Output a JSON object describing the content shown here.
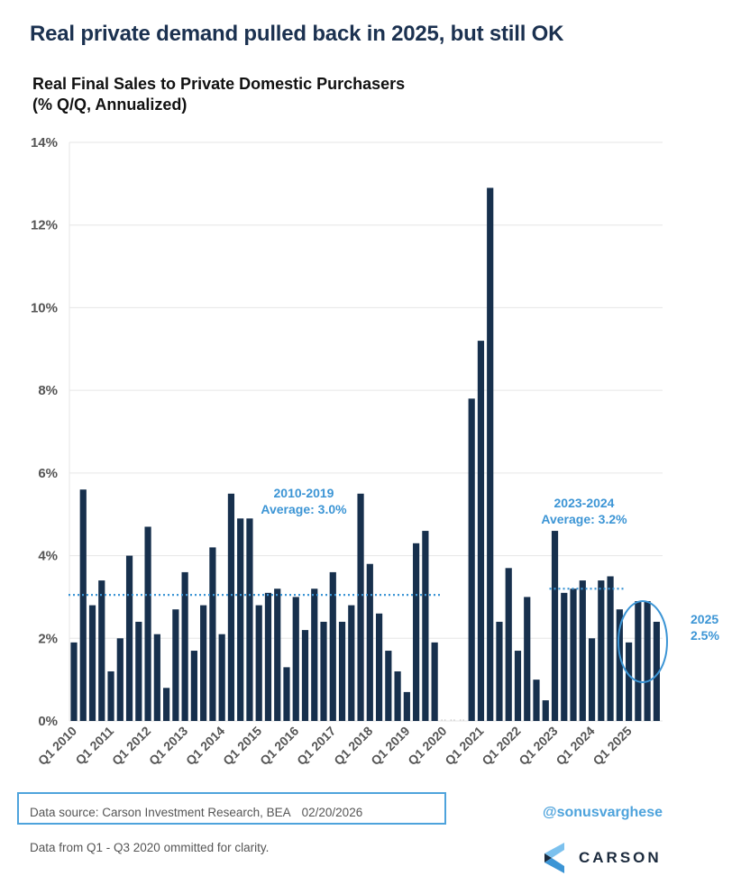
{
  "header": {
    "title": "Real private demand pulled back in 2025, but still OK",
    "subtitle_line1": "Real Final Sales to Private Domestic Purchasers",
    "subtitle_line2": "(% Q/Q, Annualized)"
  },
  "chart_data": {
    "type": "bar",
    "title": "Real Final Sales to Private Domestic Purchasers",
    "subtitle": "(% Q/Q, Annualized)",
    "xlabel": "",
    "ylabel": "",
    "ylim": [
      0,
      14
    ],
    "yticks": [
      0,
      2,
      4,
      6,
      8,
      10,
      12,
      14
    ],
    "ytick_labels": [
      "0%",
      "2%",
      "4%",
      "6%",
      "8%",
      "10%",
      "12%",
      "14%"
    ],
    "grid": true,
    "bar_color": "#17304d",
    "categories": [
      "Q1 2010",
      "Q2 2010",
      "Q3 2010",
      "Q4 2010",
      "Q1 2011",
      "Q2 2011",
      "Q3 2011",
      "Q4 2011",
      "Q1 2012",
      "Q2 2012",
      "Q3 2012",
      "Q4 2012",
      "Q1 2013",
      "Q2 2013",
      "Q3 2013",
      "Q4 2013",
      "Q1 2014",
      "Q2 2014",
      "Q3 2014",
      "Q4 2014",
      "Q1 2015",
      "Q2 2015",
      "Q3 2015",
      "Q4 2015",
      "Q1 2016",
      "Q2 2016",
      "Q3 2016",
      "Q4 2016",
      "Q1 2017",
      "Q2 2017",
      "Q3 2017",
      "Q4 2017",
      "Q1 2018",
      "Q2 2018",
      "Q3 2018",
      "Q4 2018",
      "Q1 2019",
      "Q2 2019",
      "Q3 2019",
      "Q4 2019",
      "Q1 2020",
      "Q2 2020",
      "Q3 2020",
      "Q4 2020",
      "Q1 2021",
      "Q2 2021",
      "Q3 2021",
      "Q4 2021",
      "Q1 2022",
      "Q2 2022",
      "Q3 2022",
      "Q4 2022",
      "Q1 2023",
      "Q2 2023",
      "Q3 2023",
      "Q4 2023",
      "Q1 2024",
      "Q2 2024",
      "Q3 2024",
      "Q4 2024",
      "Q1 2025",
      "Q2 2025",
      "Q3 2025",
      "Q4 2025"
    ],
    "values": [
      1.9,
      5.6,
      2.8,
      3.4,
      1.2,
      2.0,
      4.0,
      2.4,
      4.7,
      2.1,
      0.8,
      2.7,
      3.6,
      1.7,
      2.8,
      4.2,
      2.1,
      5.5,
      4.9,
      4.9,
      2.8,
      3.1,
      3.2,
      1.3,
      3.0,
      2.2,
      3.2,
      2.4,
      3.6,
      2.4,
      2.8,
      5.5,
      3.8,
      2.6,
      1.7,
      1.2,
      0.7,
      4.3,
      4.6,
      1.9,
      null,
      null,
      null,
      7.8,
      9.2,
      12.9,
      2.4,
      3.7,
      1.7,
      3.0,
      1.0,
      0.5,
      4.6,
      3.1,
      3.2,
      3.4,
      2.0,
      3.4,
      3.5,
      2.7,
      1.9,
      2.9,
      2.9,
      2.4
    ],
    "xtick_labels": [
      "Q1 2010",
      "Q1 2011",
      "Q1 2012",
      "Q1 2013",
      "Q1 2014",
      "Q1 2015",
      "Q1 2016",
      "Q1 2017",
      "Q1 2018",
      "Q1 2019",
      "Q1 2020",
      "Q1 2021",
      "Q1 2022",
      "Q1 2023",
      "Q1 2024",
      "Q1 2025"
    ],
    "reference_lines": [
      {
        "name": "2010-2019 average",
        "value": 3.0,
        "from": "Q1 2010",
        "to": "Q4 2019",
        "style": "dotted",
        "color": "#3c95d5"
      },
      {
        "name": "2023-2024 average",
        "value": 3.2,
        "from": "Q1 2023",
        "to": "Q4 2024",
        "style": "dotted",
        "color": "#3c95d5"
      }
    ],
    "annotations": [
      {
        "lines": [
          "2010-2019",
          "Average: 3.0%"
        ],
        "color": "#3c95d5"
      },
      {
        "lines": [
          "2023-2024",
          "Average: 3.2%"
        ],
        "color": "#3c95d5"
      },
      {
        "lines": [
          "2025",
          "2.5%"
        ],
        "color": "#3c95d5",
        "highlight": "ellipse around Q1-Q4 2025"
      }
    ],
    "omitted": [
      "Q1 2020",
      "Q2 2020",
      "Q3 2020"
    ]
  },
  "footer": {
    "source": "Data source: Carson Investment Research, BEA",
    "date": "02/20/2026",
    "note": "Data from Q1 - Q3 2020 ommitted for clarity.",
    "handle": "@sonusvarghese",
    "logo_text": "CARSON"
  },
  "colors": {
    "title": "#1b3150",
    "bar": "#17304d",
    "accent": "#3c95d5",
    "tick_text": "#555555",
    "grid": "#e6e6e6"
  }
}
